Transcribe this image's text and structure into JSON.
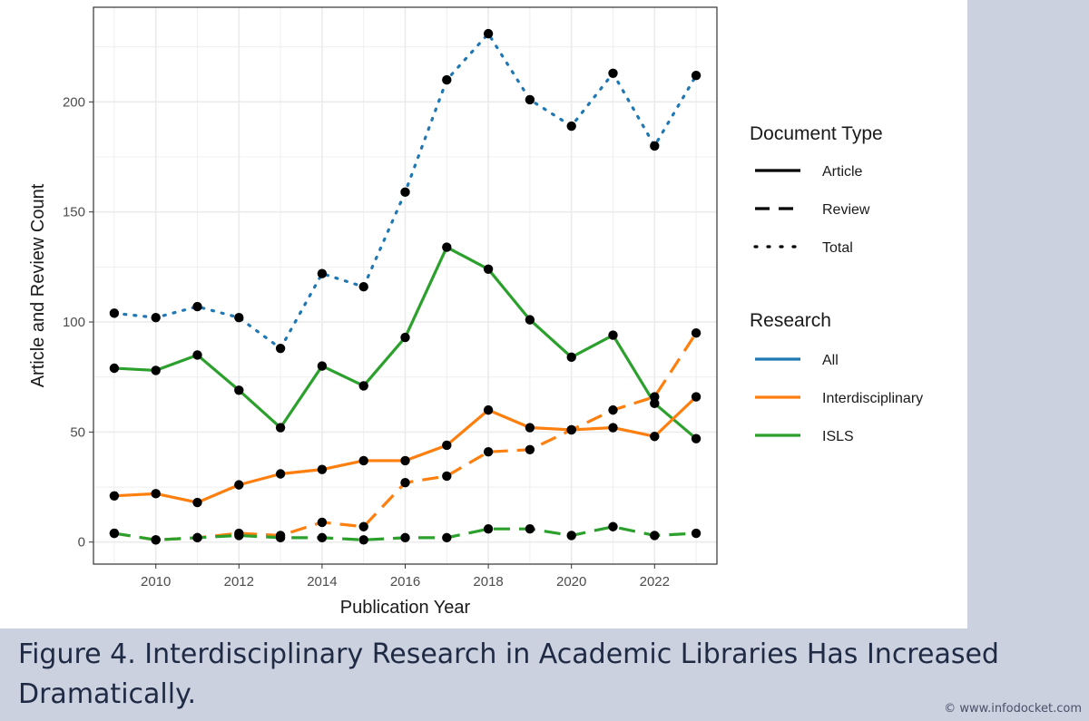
{
  "caption": "Figure 4. Interdisciplinary Research in Academic Libraries Has Increased Dramatically.",
  "watermark": "© www.infodocket.com",
  "colors": {
    "all": "#1f77b4",
    "interdisciplinary": "#ff7f0e",
    "isls": "#2ca02c",
    "point": "#000000",
    "grid": "#ebebeb",
    "panel_border": "#333333"
  },
  "chart_data": {
    "type": "line",
    "title": "",
    "xlabel": "Publication Year",
    "ylabel": "Article and Review Count",
    "xlim": [
      2008.5,
      2023.5
    ],
    "ylim": [
      -10,
      243
    ],
    "x_ticks": [
      2010,
      2012,
      2014,
      2016,
      2018,
      2020,
      2022
    ],
    "y_ticks": [
      0,
      50,
      100,
      150,
      200
    ],
    "grid": true,
    "legend_position": "right",
    "x": [
      2009,
      2010,
      2011,
      2012,
      2013,
      2014,
      2015,
      2016,
      2017,
      2018,
      2019,
      2020,
      2021,
      2022,
      2023
    ],
    "legends": [
      {
        "title": "Document Type",
        "entries": [
          {
            "label": "Article",
            "linetype": "solid"
          },
          {
            "label": "Review",
            "linetype": "dashed"
          },
          {
            "label": "Total",
            "linetype": "dotted"
          }
        ]
      },
      {
        "title": "Research",
        "entries": [
          {
            "label": "All",
            "color": "#1f77b4"
          },
          {
            "label": "Interdisciplinary",
            "color": "#ff7f0e"
          },
          {
            "label": "ISLS",
            "color": "#2ca02c"
          }
        ]
      }
    ],
    "series": [
      {
        "research": "All",
        "document_type": "Total",
        "linetype": "dotted",
        "color": "#1f77b4",
        "values": [
          104,
          102,
          107,
          102,
          88,
          122,
          116,
          159,
          210,
          231,
          201,
          189,
          213,
          180,
          212
        ]
      },
      {
        "research": "ISLS",
        "document_type": "Article",
        "linetype": "solid",
        "color": "#2ca02c",
        "values": [
          79,
          78,
          85,
          69,
          52,
          80,
          71,
          93,
          134,
          124,
          101,
          84,
          94,
          63,
          47
        ]
      },
      {
        "research": "Interdisciplinary",
        "document_type": "Article",
        "linetype": "solid",
        "color": "#ff7f0e",
        "values": [
          21,
          22,
          18,
          26,
          31,
          33,
          37,
          37,
          44,
          60,
          52,
          51,
          52,
          48,
          66
        ]
      },
      {
        "research": "Interdisciplinary",
        "document_type": "Review",
        "linetype": "dashed",
        "color": "#ff7f0e",
        "values": [
          4,
          1,
          2,
          4,
          3,
          9,
          7,
          27,
          30,
          41,
          42,
          51,
          60,
          66,
          95
        ]
      },
      {
        "research": "ISLS",
        "document_type": "Review",
        "linetype": "dashed",
        "color": "#2ca02c",
        "values": [
          4,
          1,
          2,
          3,
          2,
          2,
          1,
          2,
          2,
          6,
          6,
          3,
          7,
          3,
          4
        ]
      }
    ]
  }
}
